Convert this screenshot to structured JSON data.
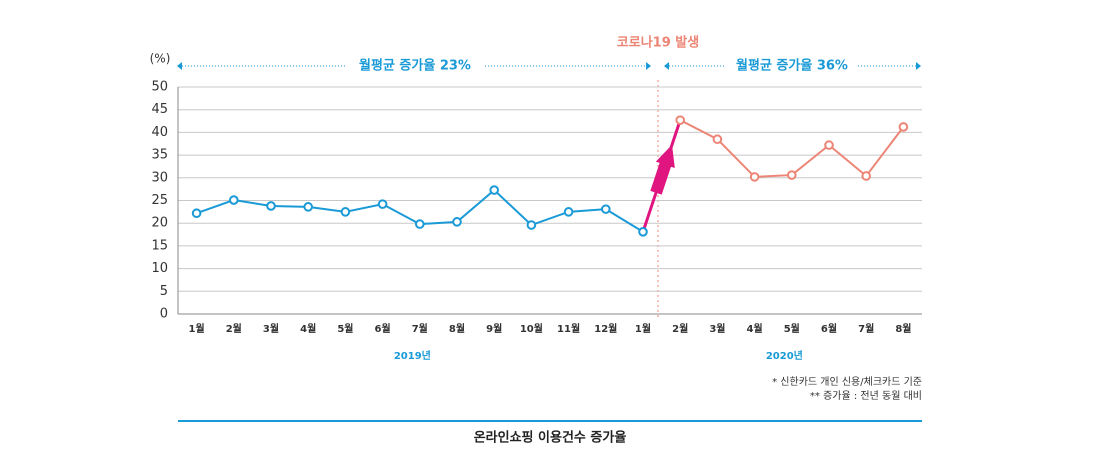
{
  "chart_data": {
    "type": "line",
    "y_unit_label": "(%)",
    "categories": [
      "1월",
      "2월",
      "3월",
      "4월",
      "5월",
      "6월",
      "7월",
      "8월",
      "9월",
      "10월",
      "11월",
      "12월",
      "1월",
      "2월",
      "3월",
      "4월",
      "5월",
      "6월",
      "7월",
      "8월"
    ],
    "x_groups": [
      "2019년",
      "2020년"
    ],
    "series": [
      {
        "color": "#1a9ad6",
        "values": [
          22.2,
          25.1,
          23.8,
          23.6,
          22.5,
          24.2,
          19.8,
          20.3,
          27.3,
          19.6,
          22.5,
          23.1,
          18.1,
          null,
          null,
          null,
          null,
          null,
          null,
          null
        ]
      },
      {
        "color": "#ec8575",
        "values": [
          null,
          null,
          null,
          null,
          null,
          null,
          null,
          null,
          null,
          null,
          null,
          null,
          null,
          42.7,
          38.5,
          30.2,
          30.6,
          37.2,
          30.4,
          41.2
        ]
      }
    ],
    "ylim": [
      0,
      50
    ],
    "yticks": [
      0,
      5,
      10,
      15,
      20,
      25,
      30,
      35,
      40,
      45,
      50
    ],
    "grid": true,
    "annotations": [
      "코로나19 발생",
      "월평균 증가율 23%",
      "월평균 증가율 36%"
    ],
    "notes": [
      "* 신한카드 개인 신용/체크카드 기준",
      "**  증가율 : 전년 동월 대비"
    ],
    "caption": "온라인쇼핑 이용건수 증가율"
  }
}
